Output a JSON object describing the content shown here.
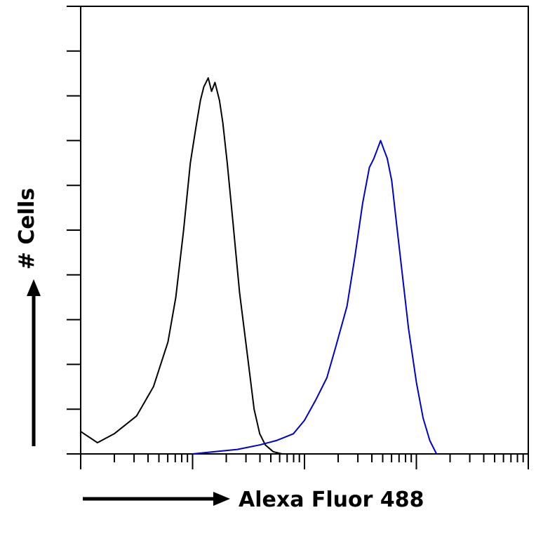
{
  "chart_data": {
    "type": "line",
    "title": "",
    "xlabel": "Alexa Fluor 488",
    "ylabel": "# Cells",
    "x_scale": "log",
    "xlim": [
      0,
      4
    ],
    "ylim": [
      0,
      10
    ],
    "x_tick_labels": [],
    "y_tick_labels": [],
    "grid": false,
    "legend": "none",
    "series": [
      {
        "color": "#000000",
        "points": [
          [
            0.0,
            0.5
          ],
          [
            0.15,
            0.25
          ],
          [
            0.3,
            0.45
          ],
          [
            0.5,
            0.85
          ],
          [
            0.65,
            1.5
          ],
          [
            0.78,
            2.5
          ],
          [
            0.85,
            3.5
          ],
          [
            0.92,
            5.0
          ],
          [
            0.98,
            6.5
          ],
          [
            1.03,
            7.3
          ],
          [
            1.07,
            7.9
          ],
          [
            1.1,
            8.2
          ],
          [
            1.14,
            8.4
          ],
          [
            1.17,
            8.1
          ],
          [
            1.2,
            8.3
          ],
          [
            1.24,
            7.9
          ],
          [
            1.27,
            7.4
          ],
          [
            1.31,
            6.5
          ],
          [
            1.36,
            5.2
          ],
          [
            1.42,
            3.6
          ],
          [
            1.49,
            2.2
          ],
          [
            1.55,
            1.0
          ],
          [
            1.6,
            0.45
          ],
          [
            1.65,
            0.2
          ],
          [
            1.72,
            0.05
          ],
          [
            1.8,
            0.0
          ]
        ]
      },
      {
        "color": "#0000cc",
        "points": [
          [
            1.0,
            0.0
          ],
          [
            1.2,
            0.05
          ],
          [
            1.4,
            0.1
          ],
          [
            1.6,
            0.2
          ],
          [
            1.75,
            0.3
          ],
          [
            1.9,
            0.45
          ],
          [
            2.0,
            0.75
          ],
          [
            2.1,
            1.2
          ],
          [
            2.2,
            1.7
          ],
          [
            2.28,
            2.4
          ],
          [
            2.38,
            3.3
          ],
          [
            2.45,
            4.4
          ],
          [
            2.52,
            5.6
          ],
          [
            2.58,
            6.4
          ],
          [
            2.62,
            6.6
          ],
          [
            2.65,
            6.8
          ],
          [
            2.68,
            7.0
          ],
          [
            2.71,
            6.8
          ],
          [
            2.74,
            6.6
          ],
          [
            2.78,
            6.1
          ],
          [
            2.82,
            5.2
          ],
          [
            2.87,
            4.1
          ],
          [
            2.93,
            2.8
          ],
          [
            3.0,
            1.6
          ],
          [
            3.06,
            0.8
          ],
          [
            3.12,
            0.3
          ],
          [
            3.18,
            0.0
          ]
        ]
      }
    ]
  }
}
